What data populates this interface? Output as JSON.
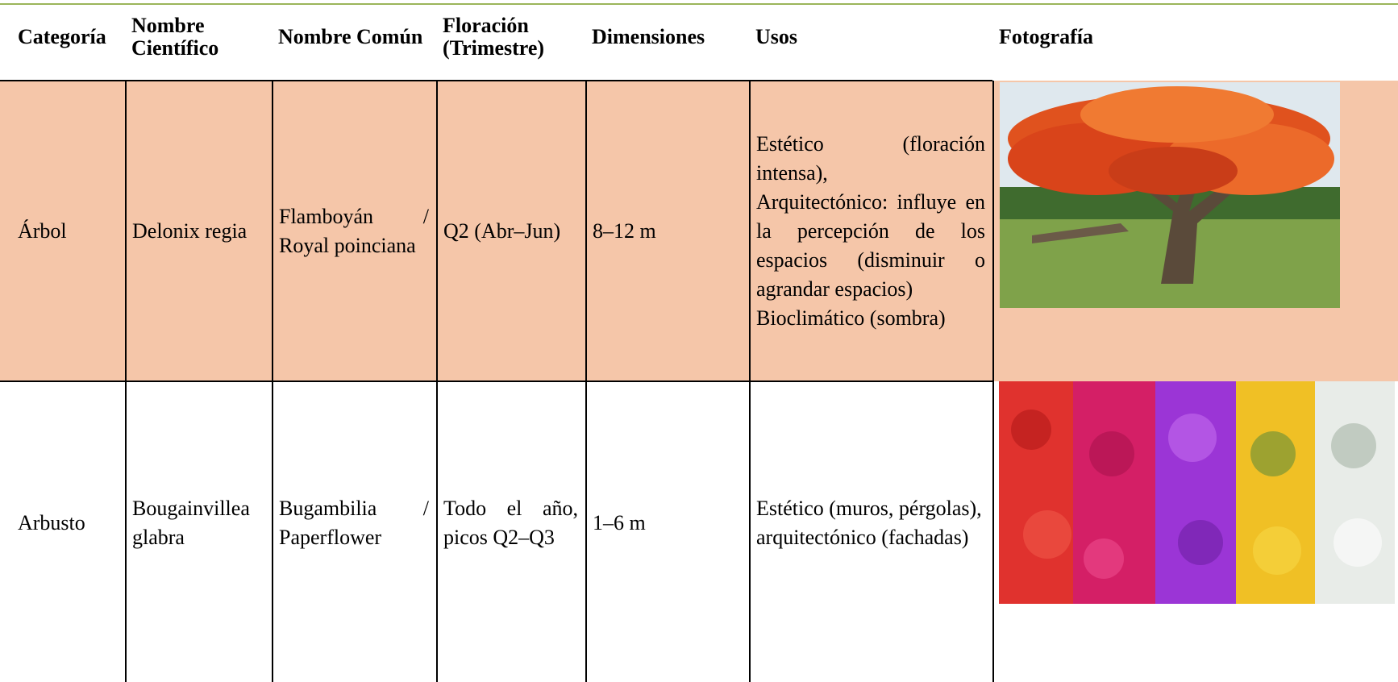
{
  "table": {
    "header": [
      "Categoría",
      "Nombre Científico",
      "Nombre Común",
      "Floración (Trimestre)",
      "Dimensiones",
      "Usos",
      "Fotografía"
    ],
    "rows": [
      [
        "Árbol",
        "Delonix regia",
        "Flamboyán / Royal poinciana",
        "Q2 (Abr–Jun)",
        "8–12 m",
        [
          "Estético (floración intensa),",
          "Arquitectónico: influye en la percepción de los espacios (disminuir o agrandar espacios)",
          "Bioclimático (sombra)"
        ]
      ],
      [
        "Arbusto",
        "Bougainvillea glabra",
        "Bugambilia / Paperflower",
        "Todo el año, picos Q2–Q3",
        "1–6 m",
        [
          "Estético (muros, pérgolas),",
          "arquitectónico (fachadas)"
        ]
      ]
    ]
  }
}
